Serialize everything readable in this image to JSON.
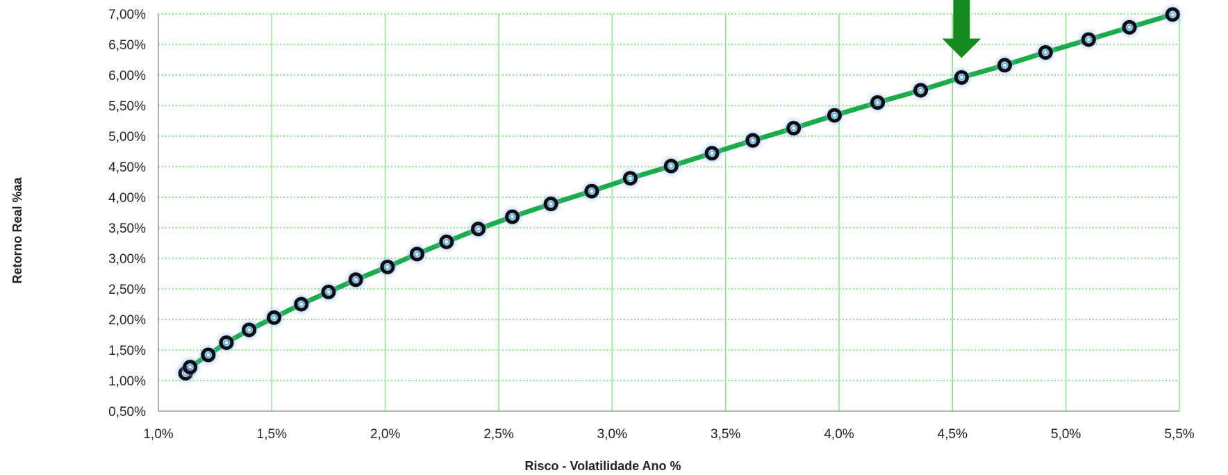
{
  "chart_data": {
    "type": "line",
    "title": "",
    "xlabel": "Risco - Volatilidade Ano %",
    "ylabel": "Retorno Real %aa",
    "xlim": [
      1.0,
      5.5
    ],
    "ylim": [
      0.5,
      7.0
    ],
    "x_ticks": [
      1.0,
      1.5,
      2.0,
      2.5,
      3.0,
      3.5,
      4.0,
      4.5,
      5.0,
      5.5
    ],
    "x_tick_labels": [
      "1,0%",
      "1,5%",
      "2,0%",
      "2,5%",
      "3,0%",
      "3,5%",
      "4,0%",
      "4,5%",
      "5,0%",
      "5,5%"
    ],
    "y_ticks": [
      0.5,
      1.0,
      1.5,
      2.0,
      2.5,
      3.0,
      3.5,
      4.0,
      4.5,
      5.0,
      5.5,
      6.0,
      6.5,
      7.0
    ],
    "y_tick_labels": [
      "0,50%",
      "1,00%",
      "1,50%",
      "2,00%",
      "2,50%",
      "3,00%",
      "3,50%",
      "4,00%",
      "4,50%",
      "5,00%",
      "5,50%",
      "6,00%",
      "6,50%",
      "7,00%"
    ],
    "grid": true,
    "legend": "none",
    "series": [
      {
        "x": [
          1.12,
          1.14,
          1.22,
          1.3,
          1.4,
          1.51,
          1.63,
          1.75,
          1.87,
          2.01,
          2.14,
          2.27,
          2.41,
          2.56,
          2.73,
          2.91,
          3.08,
          3.26,
          3.44,
          3.62,
          3.8,
          3.98,
          4.17,
          4.36,
          4.54,
          4.73,
          4.91,
          5.1,
          5.28,
          5.47
        ],
        "y": [
          1.12,
          1.22,
          1.42,
          1.62,
          1.83,
          2.03,
          2.25,
          2.45,
          2.65,
          2.86,
          3.07,
          3.27,
          3.48,
          3.68,
          3.89,
          4.1,
          4.31,
          4.51,
          4.72,
          4.93,
          5.13,
          5.34,
          5.55,
          5.75,
          5.96,
          6.16,
          6.37,
          6.58,
          6.78,
          6.99
        ]
      }
    ],
    "annotations": [
      {
        "type": "arrow-down",
        "x": 4.54,
        "y": 5.96
      }
    ],
    "colors": {
      "line": "#1aab4b",
      "marker": "#0d0d0d",
      "marker_glow": "#8fb8ff",
      "grid": "#88e888",
      "axis": "#999999",
      "arrow": "#128a1c"
    }
  }
}
